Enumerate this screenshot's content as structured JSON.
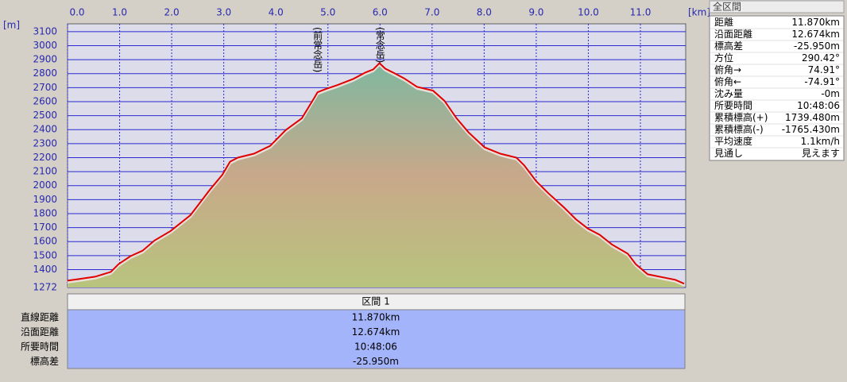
{
  "chart_data": {
    "type": "area",
    "x_unit": "[km]",
    "y_unit": "[m]",
    "x": [
      0.0,
      0.22,
      0.53,
      0.83,
      0.98,
      1.21,
      1.44,
      1.67,
      1.98,
      2.36,
      2.74,
      2.97,
      3.12,
      3.27,
      3.58,
      3.89,
      4.19,
      4.5,
      4.73,
      4.8,
      4.95,
      5.18,
      5.49,
      5.72,
      5.87,
      5.99,
      6.1,
      6.25,
      6.48,
      6.71,
      7.02,
      7.24,
      7.47,
      7.7,
      8.01,
      8.31,
      8.62,
      8.77,
      9.0,
      9.23,
      9.53,
      9.76,
      9.99,
      10.22,
      10.45,
      10.76,
      10.91,
      11.14,
      11.44,
      11.67,
      11.84
    ],
    "values": [
      1321,
      1332,
      1349,
      1383,
      1439,
      1496,
      1535,
      1608,
      1676,
      1789,
      1974,
      2076,
      2171,
      2200,
      2228,
      2284,
      2397,
      2481,
      2622,
      2667,
      2689,
      2718,
      2763,
      2808,
      2830,
      2875,
      2836,
      2808,
      2763,
      2706,
      2678,
      2605,
      2481,
      2380,
      2273,
      2228,
      2200,
      2144,
      2031,
      1946,
      1845,
      1760,
      1693,
      1648,
      1580,
      1513,
      1439,
      1366,
      1344,
      1327,
      1299
    ],
    "color": "#e00000",
    "xlim": [
      0,
      11.87
    ],
    "ylim": [
      1272,
      3156
    ],
    "xticks": [
      {
        "value": 0,
        "label": "0.0"
      },
      {
        "value": 1,
        "label": "1.0"
      },
      {
        "value": 2,
        "label": "2.0"
      },
      {
        "value": 3,
        "label": "3.0"
      },
      {
        "value": 4,
        "label": "4.0"
      },
      {
        "value": 5,
        "label": "5.0"
      },
      {
        "value": 6,
        "label": "6.0"
      },
      {
        "value": 7,
        "label": "7.0"
      },
      {
        "value": 8,
        "label": "8.0"
      },
      {
        "value": 9,
        "label": "9.0"
      },
      {
        "value": 10,
        "label": "10.0"
      },
      {
        "value": 11,
        "label": "11.0"
      }
    ],
    "yticks": [
      1272,
      1400,
      1500,
      1600,
      1700,
      1800,
      1900,
      2000,
      2100,
      2200,
      2300,
      2400,
      2500,
      2600,
      2700,
      2800,
      2900,
      3000,
      3100
    ],
    "grid": true,
    "annotations": [
      {
        "text": "(前常念岳)",
        "x": 4.8
      },
      {
        "text": "(常念岳)",
        "x": 6.0
      }
    ]
  },
  "section_table": {
    "header": "区間 1",
    "rows": [
      [
        "直線距離",
        "11.870km"
      ],
      [
        "沿面距離",
        "12.674km"
      ],
      [
        "所要時間",
        "10:48:06"
      ],
      [
        "標高差",
        "-25.950m"
      ]
    ]
  },
  "summary_panel": {
    "title": "全区間",
    "rows": [
      [
        "距離",
        "11.870km"
      ],
      [
        "沿面距離",
        "12.674km"
      ],
      [
        "標高差",
        "-25.950m"
      ],
      [
        "方位",
        "290.42°"
      ],
      [
        "俯角→",
        "74.91°"
      ],
      [
        "俯角←",
        "-74.91°"
      ],
      [
        "沈み量",
        "-0m"
      ],
      [
        "所要時間",
        "10:48:06"
      ],
      [
        "累積標高(+)",
        "1739.480m"
      ],
      [
        "累積標高(-)",
        "-1765.430m"
      ],
      [
        "平均速度",
        "1.1km/h"
      ],
      [
        "見通し",
        "見えます"
      ]
    ]
  }
}
